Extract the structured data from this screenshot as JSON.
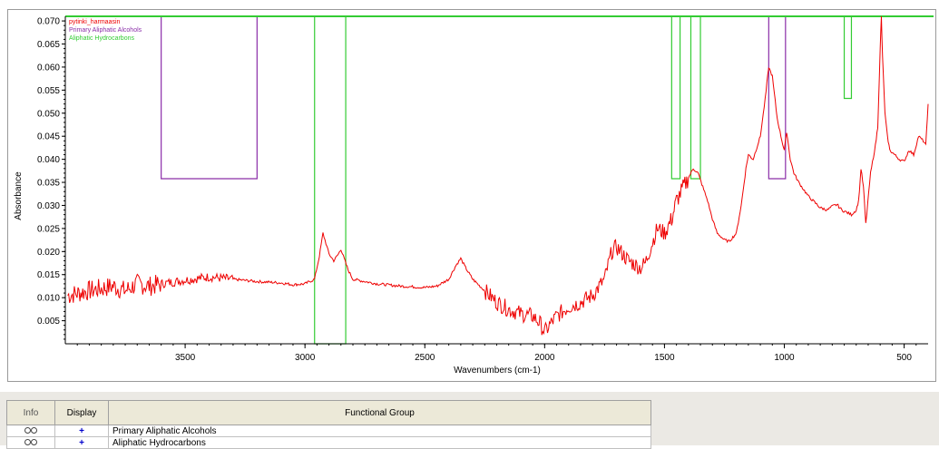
{
  "chart_data": {
    "type": "line",
    "title": "",
    "xlabel": "Wavenumbers (cm-1)",
    "ylabel": "Absorbance",
    "xlim": [
      4000,
      400
    ],
    "x_reversed": true,
    "ylim": [
      0.0,
      0.071
    ],
    "x_ticks": [
      3500,
      3000,
      2500,
      2000,
      1500,
      1000,
      500
    ],
    "x_tick_labels": [
      "3500",
      "3000",
      "2500",
      "2000",
      "1500",
      "1000",
      "500"
    ],
    "y_ticks": [
      0.005,
      0.01,
      0.015,
      0.02,
      0.025,
      0.03,
      0.035,
      0.04,
      0.045,
      0.05,
      0.055,
      0.06,
      0.065,
      0.07
    ],
    "y_tick_labels": [
      "0.005",
      "0.010",
      "0.015",
      "0.020",
      "0.025",
      "0.030",
      "0.035",
      "0.040",
      "0.045",
      "0.050",
      "0.055",
      "0.060",
      "0.065",
      "0.070"
    ],
    "legend_placement": "top-left",
    "legend": [
      {
        "name": "pytinki_harmaasin",
        "color": "#ee0000"
      },
      {
        "name": "Primary Aliphatic Alcohols",
        "color": "#8a2da8"
      },
      {
        "name": "Aliphatic Hydrocarbons",
        "color": "#33cc33"
      }
    ],
    "series": [
      {
        "name": "pytinki_harmaasin",
        "color": "#ee0000",
        "x": [
          3990,
          3900,
          3850,
          3800,
          3750,
          3700,
          3650,
          3600,
          3500,
          3400,
          3300,
          3200,
          3100,
          3050,
          3000,
          2960,
          2940,
          2925,
          2900,
          2880,
          2860,
          2850,
          2840,
          2820,
          2800,
          2700,
          2600,
          2500,
          2450,
          2400,
          2370,
          2350,
          2330,
          2300,
          2250,
          2200,
          2150,
          2100,
          2050,
          2020,
          2000,
          1980,
          1950,
          1900,
          1850,
          1800,
          1750,
          1720,
          1700,
          1650,
          1600,
          1580,
          1550,
          1530,
          1500,
          1470,
          1460,
          1450,
          1430,
          1400,
          1380,
          1360,
          1340,
          1320,
          1300,
          1280,
          1250,
          1230,
          1200,
          1180,
          1160,
          1150,
          1130,
          1100,
          1080,
          1065,
          1050,
          1030,
          1010,
          1000,
          990,
          975,
          960,
          940,
          900,
          850,
          820,
          800,
          780,
          760,
          740,
          720,
          700,
          690,
          680,
          670,
          660,
          640,
          620,
          610,
          600,
          595,
          590,
          580,
          570,
          560,
          540,
          520,
          500,
          480,
          460,
          440,
          420,
          410,
          400
        ],
        "y": [
          0.0105,
          0.0115,
          0.012,
          0.0125,
          0.0115,
          0.013,
          0.0125,
          0.013,
          0.0138,
          0.0145,
          0.014,
          0.0135,
          0.0132,
          0.0128,
          0.013,
          0.014,
          0.019,
          0.024,
          0.0195,
          0.018,
          0.0195,
          0.0205,
          0.019,
          0.016,
          0.014,
          0.013,
          0.0125,
          0.0122,
          0.0125,
          0.014,
          0.017,
          0.0185,
          0.0165,
          0.014,
          0.0115,
          0.009,
          0.0075,
          0.0065,
          0.006,
          0.0045,
          0.0025,
          0.004,
          0.006,
          0.008,
          0.009,
          0.0105,
          0.014,
          0.02,
          0.021,
          0.018,
          0.0165,
          0.0175,
          0.022,
          0.025,
          0.024,
          0.027,
          0.029,
          0.031,
          0.033,
          0.036,
          0.038,
          0.037,
          0.034,
          0.031,
          0.027,
          0.024,
          0.0225,
          0.0222,
          0.024,
          0.03,
          0.038,
          0.041,
          0.04,
          0.045,
          0.053,
          0.06,
          0.058,
          0.049,
          0.044,
          0.042,
          0.046,
          0.04,
          0.037,
          0.035,
          0.032,
          0.0295,
          0.029,
          0.0298,
          0.0302,
          0.029,
          0.0285,
          0.028,
          0.029,
          0.031,
          0.038,
          0.034,
          0.026,
          0.037,
          0.043,
          0.047,
          0.064,
          0.071,
          0.062,
          0.05,
          0.045,
          0.042,
          0.041,
          0.04,
          0.0395,
          0.042,
          0.041,
          0.045,
          0.044,
          0.043,
          0.052
        ]
      }
    ],
    "regions": [
      {
        "name": "Primary Aliphatic Alcohols",
        "color": "#8a2da8",
        "x_start": 3600,
        "x_end": 3200,
        "y_bottom": 0.0358
      },
      {
        "name": "Primary Aliphatic Alcohols",
        "color": "#8a2da8",
        "x_start": 1065,
        "x_end": 995,
        "y_bottom": 0.0358
      },
      {
        "name": "Aliphatic Hydrocarbons",
        "color": "#33cc33",
        "x_start": 2960,
        "x_end": 2830,
        "y_bottom": 0.0
      },
      {
        "name": "Aliphatic Hydrocarbons",
        "color": "#33cc33",
        "x_start": 1470,
        "x_end": 1435,
        "y_bottom": 0.0358
      },
      {
        "name": "Aliphatic Hydrocarbons",
        "color": "#33cc33",
        "x_start": 1390,
        "x_end": 1350,
        "y_bottom": 0.0358
      },
      {
        "name": "Aliphatic Hydrocarbons",
        "color": "#33cc33",
        "x_start": 750,
        "x_end": 720,
        "y_bottom": 0.0532
      }
    ]
  },
  "table": {
    "headers": {
      "info": "Info",
      "display": "Display",
      "group": "Functional Group"
    },
    "rows": [
      {
        "info_icon": "binoculars-icon",
        "display": "+",
        "group": "Primary Aliphatic Alcohols"
      },
      {
        "info_icon": "binoculars-icon",
        "display": "+",
        "group": "Aliphatic Hydrocarbons"
      }
    ]
  }
}
